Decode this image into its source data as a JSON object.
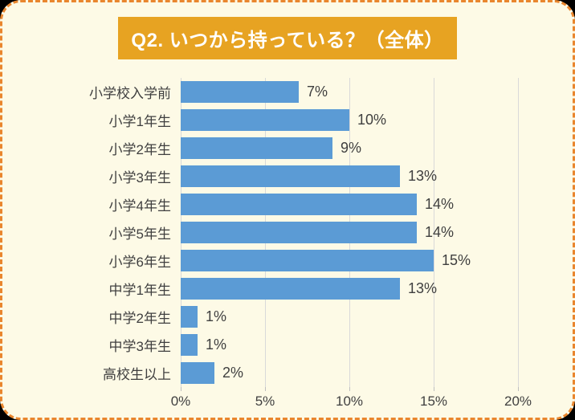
{
  "page": {
    "outer_background": "#000000"
  },
  "card": {
    "background": "#FDFAE6",
    "border_color": "#E9862E"
  },
  "title": {
    "text": "Q2. いつから持っている？（全体）",
    "background": "#E7A322",
    "text_color": "#FFFFFF"
  },
  "chart_data": {
    "type": "bar",
    "orientation": "horizontal",
    "title": "Q2. いつから持っている？（全体）",
    "categories": [
      "小学校入学前",
      "小学1年生",
      "小学2年生",
      "小学3年生",
      "小学4年生",
      "小学5年生",
      "小学6年生",
      "中学1年生",
      "中学2年生",
      "中学3年生",
      "高校生以上"
    ],
    "values": [
      7,
      10,
      9,
      13,
      14,
      14,
      15,
      13,
      1,
      1,
      2
    ],
    "value_labels": [
      "7%",
      "10%",
      "9%",
      "13%",
      "14%",
      "14%",
      "15%",
      "13%",
      "1%",
      "1%",
      "2%"
    ],
    "xlabel": "",
    "ylabel": "",
    "xlim": [
      0,
      20
    ],
    "x_tick_labels": [
      "0%",
      "5%",
      "10%",
      "15%",
      "20%"
    ],
    "x_tick_values": [
      0,
      5,
      10,
      15,
      20
    ],
    "grid": true,
    "legend": false,
    "bar_color": "#5B9BD5",
    "gridline_color": "#D9D9D9",
    "tick_color": "#BFBFBF",
    "text_color": "#3F3F3F"
  }
}
